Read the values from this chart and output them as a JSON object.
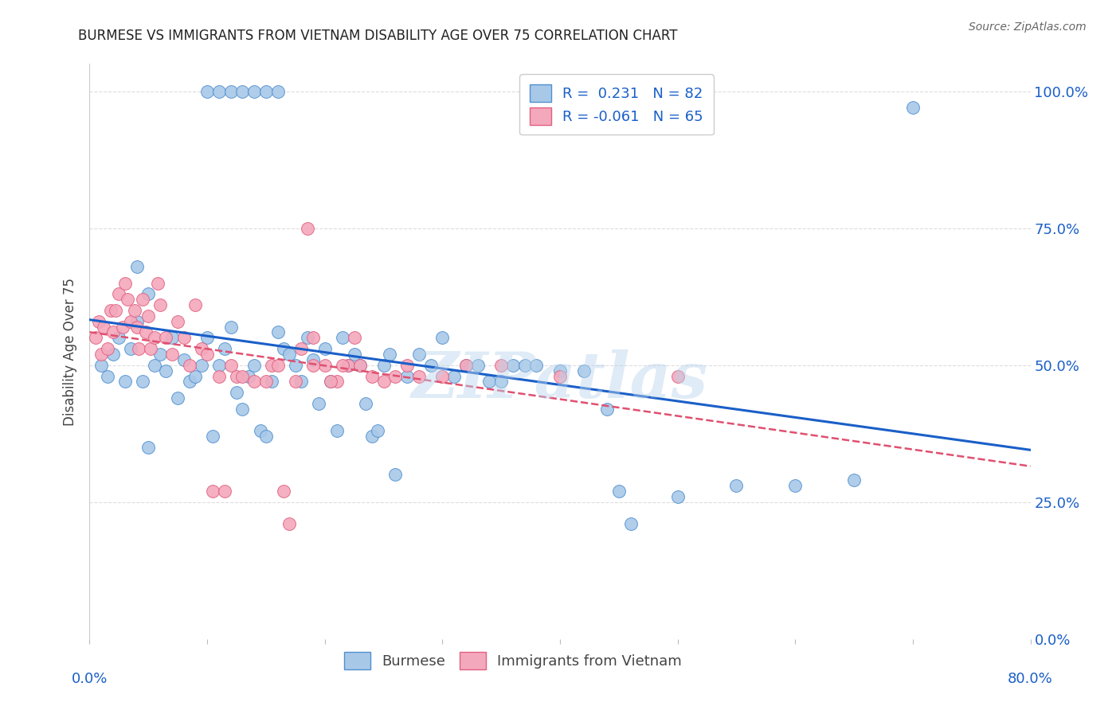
{
  "title": "BURMESE VS IMMIGRANTS FROM VIETNAM DISABILITY AGE OVER 75 CORRELATION CHART",
  "source": "Source: ZipAtlas.com",
  "ylabel": "Disability Age Over 75",
  "legend_blue_label": "Burmese",
  "legend_pink_label": "Immigrants from Vietnam",
  "R_blue": 0.231,
  "N_blue": 82,
  "R_pink": -0.061,
  "N_pink": 65,
  "watermark": "ZIPatlas",
  "blue_fill": "#a8c8e8",
  "pink_fill": "#f4a8bc",
  "blue_edge": "#5090d0",
  "pink_edge": "#e06080",
  "blue_line": "#1a5fc8",
  "pink_line": "#e05070",
  "title_color": "#222222",
  "source_color": "#666666",
  "ylabel_color": "#444444",
  "right_tick_color": "#1a5fc8",
  "bottom_tick_color": "#1a5fc8",
  "xlim": [
    0,
    80
  ],
  "ylim": [
    0,
    105
  ],
  "ytick_values": [
    0,
    25,
    50,
    75,
    100
  ],
  "grid_color": "#dddddd",
  "blue_scatter_x": [
    1.0,
    1.5,
    2.0,
    2.5,
    3.0,
    3.5,
    4.0,
    4.5,
    5.0,
    5.5,
    6.0,
    6.5,
    7.0,
    7.5,
    8.0,
    8.5,
    9.0,
    9.5,
    10.0,
    10.5,
    11.0,
    11.5,
    12.0,
    12.5,
    13.0,
    13.5,
    14.0,
    14.5,
    15.0,
    15.5,
    16.0,
    16.5,
    17.0,
    17.5,
    18.0,
    18.5,
    19.0,
    19.5,
    20.0,
    20.5,
    21.0,
    21.5,
    22.0,
    22.5,
    23.0,
    23.5,
    24.0,
    24.5,
    25.0,
    25.5,
    26.0,
    27.0,
    28.0,
    29.0,
    30.0,
    31.0,
    32.0,
    33.0,
    34.0,
    35.0,
    36.0,
    37.0,
    38.0,
    40.0,
    42.0,
    44.0,
    45.0,
    46.0,
    50.0,
    55.0,
    60.0,
    65.0,
    70.0,
    10.0,
    11.0,
    12.0,
    13.0,
    14.0,
    15.0,
    16.0,
    4.0,
    5.0
  ],
  "blue_scatter_y": [
    50,
    48,
    52,
    55,
    47,
    53,
    58,
    47,
    35,
    50,
    52,
    49,
    55,
    44,
    51,
    47,
    48,
    50,
    55,
    37,
    50,
    53,
    57,
    45,
    42,
    48,
    50,
    38,
    37,
    47,
    56,
    53,
    52,
    50,
    47,
    55,
    51,
    43,
    53,
    47,
    38,
    55,
    50,
    52,
    50,
    43,
    37,
    38,
    50,
    52,
    30,
    48,
    52,
    50,
    55,
    48,
    50,
    50,
    47,
    47,
    50,
    50,
    50,
    49,
    49,
    42,
    27,
    21,
    26,
    28,
    28,
    29,
    97,
    100,
    100,
    100,
    100,
    100,
    100,
    100,
    68,
    63
  ],
  "pink_scatter_x": [
    0.5,
    0.8,
    1.0,
    1.2,
    1.5,
    1.8,
    2.0,
    2.2,
    2.5,
    2.8,
    3.0,
    3.2,
    3.5,
    3.8,
    4.0,
    4.2,
    4.5,
    4.8,
    5.0,
    5.2,
    5.5,
    5.8,
    6.0,
    6.5,
    7.0,
    7.5,
    8.0,
    8.5,
    9.0,
    9.5,
    10.0,
    10.5,
    11.0,
    11.5,
    12.0,
    12.5,
    13.0,
    14.0,
    15.0,
    15.5,
    16.0,
    16.5,
    17.0,
    17.5,
    18.0,
    18.5,
    19.0,
    20.0,
    21.0,
    22.0,
    23.0,
    24.0,
    25.0,
    26.0,
    27.0,
    28.0,
    30.0,
    32.0,
    35.0,
    40.0,
    50.0,
    19.0,
    20.5,
    21.5,
    22.5
  ],
  "pink_scatter_y": [
    55,
    58,
    52,
    57,
    53,
    60,
    56,
    60,
    63,
    57,
    65,
    62,
    58,
    60,
    57,
    53,
    62,
    56,
    59,
    53,
    55,
    65,
    61,
    55,
    52,
    58,
    55,
    50,
    61,
    53,
    52,
    27,
    48,
    27,
    50,
    48,
    48,
    47,
    47,
    50,
    50,
    27,
    21,
    47,
    53,
    75,
    55,
    50,
    47,
    50,
    50,
    48,
    47,
    48,
    50,
    48,
    48,
    50,
    50,
    48,
    48,
    50,
    47,
    50,
    55
  ]
}
